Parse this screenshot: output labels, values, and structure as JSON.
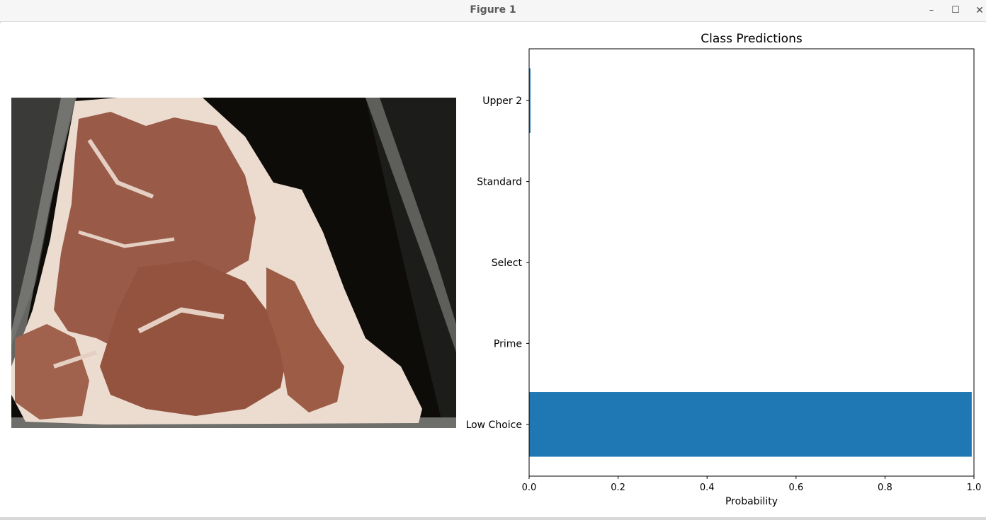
{
  "window": {
    "title": "Figure 1",
    "controls": {
      "minimize": "–",
      "maximize": "☐",
      "close": "✕"
    }
  },
  "image_panel": {
    "icon": "meat-photo",
    "colors": {
      "background": "#0e0c08",
      "fat": "#ecdcd0",
      "meat": "#9a5a48",
      "tray": "#8a8a8a"
    }
  },
  "chart_data": {
    "type": "bar",
    "orientation": "horizontal",
    "title": "Class Predictions",
    "xlabel": "Probability",
    "ylabel": "",
    "categories": [
      "Low Choice",
      "Prime",
      "Select",
      "Standard",
      "Upper 2"
    ],
    "values": [
      0.995,
      0.0,
      0.0,
      0.0,
      0.003
    ],
    "xlim": [
      0,
      1
    ],
    "xticks": [
      0.0,
      0.2,
      0.4,
      0.6,
      0.8,
      1.0
    ],
    "xtick_labels": [
      "0.0",
      "0.2",
      "0.4",
      "0.6",
      "0.8",
      "1.0"
    ],
    "bar_color": "#1f77b4",
    "grid": false,
    "legend": "none"
  }
}
